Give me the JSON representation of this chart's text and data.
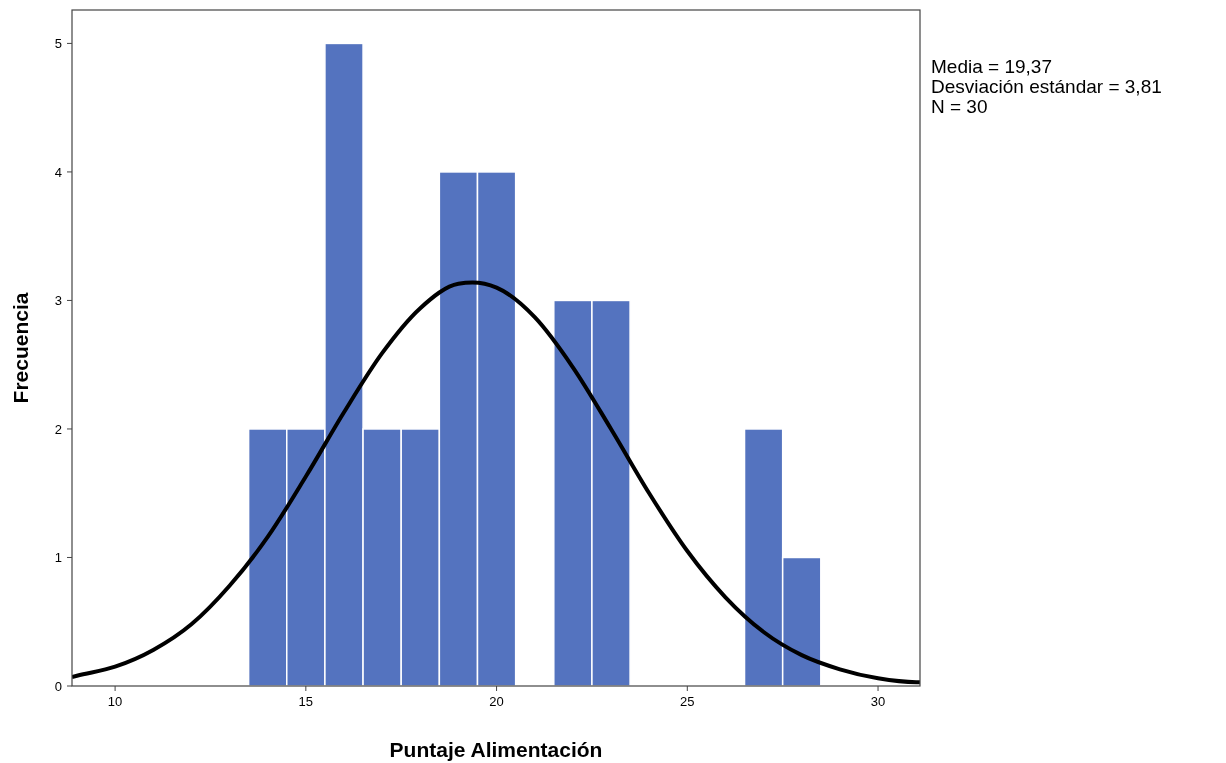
{
  "chart_data": {
    "type": "histogram",
    "xlabel": "Puntaje Alimentación",
    "ylabel": "Frecuencia",
    "annotations": [
      "Media = 19,37",
      "Desviación estándar = 3,81",
      "N = 30"
    ],
    "bins": [
      13.5,
      14.5,
      15.5,
      16.5,
      17.5,
      18.5,
      19.5,
      20.5,
      21.5,
      22.5,
      23.5,
      24.5,
      25.5,
      26.5,
      27.5,
      28.5
    ],
    "xlim": [
      8.87,
      31.1
    ],
    "xticks": [
      10,
      15,
      20,
      25,
      30
    ],
    "ylim": [
      0,
      5.26
    ],
    "yticks": [
      0,
      1,
      2,
      3,
      4,
      5
    ],
    "grid": false,
    "series": [
      {
        "color": "#5473bf",
        "values": [
          2,
          2,
          5,
          2,
          2,
          4,
          4,
          0,
          3,
          3,
          0,
          0,
          0,
          2,
          1
        ]
      },
      {
        "type": "line",
        "color": "#000000",
        "x": [
          8.87,
          9,
          10,
          11,
          12,
          13,
          14,
          15,
          16,
          17,
          18,
          19,
          19.37,
          20,
          21,
          22,
          23,
          24,
          25,
          26,
          27,
          28,
          29,
          30,
          31,
          31.1
        ],
        "values": [
          0.07,
          0.08,
          0.15,
          0.28,
          0.48,
          0.78,
          1.16,
          1.63,
          2.13,
          2.59,
          2.94,
          3.13,
          3.14,
          3.1,
          2.87,
          2.48,
          2.0,
          1.5,
          1.05,
          0.69,
          0.42,
          0.24,
          0.13,
          0.06,
          0.03,
          0.03
        ]
      }
    ]
  }
}
